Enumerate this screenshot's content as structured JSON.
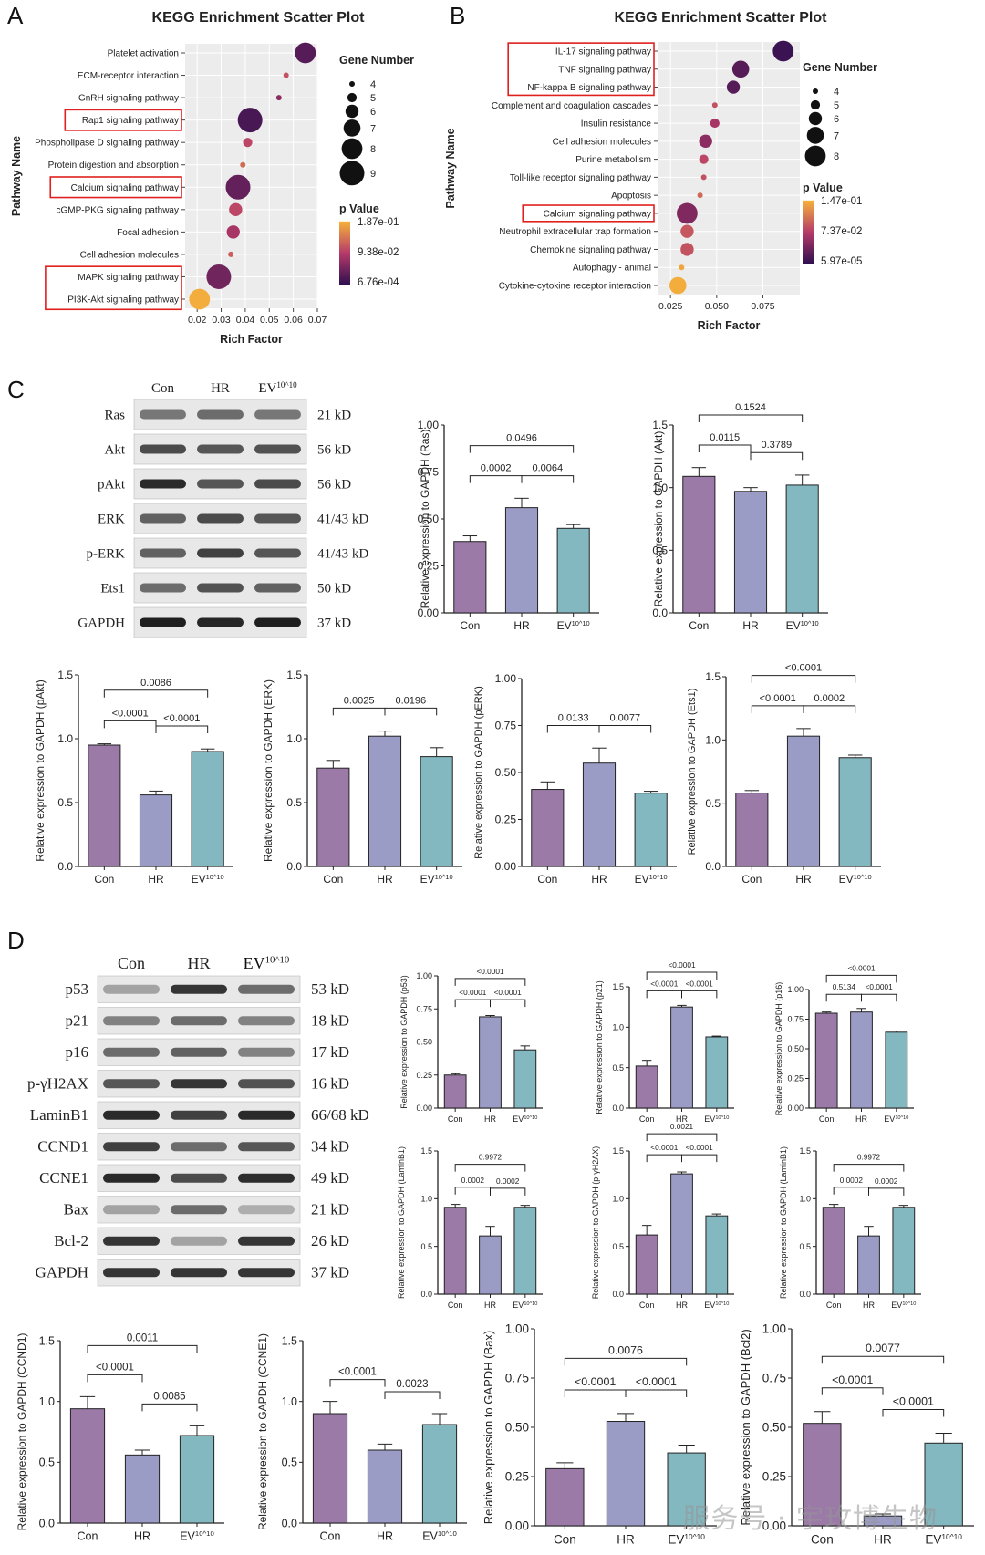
{
  "panel_labels": [
    "A",
    "B",
    "C",
    "D"
  ],
  "colors": {
    "con": "#9B7AA8",
    "hr": "#9B9CC6",
    "ev": "#84B8C0",
    "highlight": "#E0201E"
  },
  "kegg_common": {
    "title": "KEGG Enrichment Scatter Plot",
    "ylabel": "Pathway Name",
    "xlabel": "Rich Factor",
    "size_legend_title": "Gene Number",
    "color_legend_title": "p Value"
  },
  "chart_data": [
    {
      "id": "A",
      "type": "scatter",
      "title": "KEGG Enrichment Scatter Plot",
      "xlabel": "Rich Factor",
      "ylabel": "Pathway Name",
      "xlim": [
        0.015,
        0.07
      ],
      "xticks": [
        "0.02",
        "0.03",
        "0.04",
        "0.05",
        "0.06",
        "0.07"
      ],
      "xticks_num": [
        0.02,
        0.03,
        0.04,
        0.05,
        0.06,
        0.07
      ],
      "pathways": [
        "Platelet activation",
        "ECM-receptor interaction",
        "GnRH signaling pathway",
        "Rap1 signaling pathway",
        "Phospholipase D signaling pathway",
        "Protein digestion and absorption",
        "Calcium signaling pathway",
        "cGMP-PKG signaling pathway",
        "Focal adhesion",
        "Cell adhesion molecules",
        "MAPK signaling pathway",
        "PI3K-Akt signaling pathway"
      ],
      "highlighted": [
        3,
        6,
        10,
        11
      ],
      "rich_factor": [
        0.065,
        0.057,
        0.054,
        0.042,
        0.041,
        0.039,
        0.037,
        0.036,
        0.035,
        0.034,
        0.029,
        0.021
      ],
      "gene_number": [
        8,
        4,
        4,
        9,
        5,
        4,
        9,
        6,
        6,
        4,
        9,
        8
      ],
      "color_t": [
        0.15,
        0.6,
        0.35,
        0.1,
        0.55,
        0.7,
        0.2,
        0.55,
        0.45,
        0.65,
        0.25,
        0.98
      ],
      "size_legend": [
        "4",
        "5",
        "6",
        "7",
        "8",
        "9"
      ],
      "color_legend": [
        "1.87e-01",
        "9.38e-02",
        "6.76e-04"
      ]
    },
    {
      "id": "B",
      "type": "scatter",
      "title": "KEGG Enrichment Scatter Plot",
      "xlabel": "Rich Factor",
      "ylabel": "Pathway Name",
      "xlim": [
        0.018,
        0.095
      ],
      "xticks": [
        "0.025",
        "0.050",
        "0.075"
      ],
      "xticks_num": [
        0.025,
        0.05,
        0.075
      ],
      "pathways": [
        "IL-17 signaling pathway",
        "TNF signaling pathway",
        "NF-kappa B signaling pathway",
        "Complement and coagulation cascades",
        "Insulin resistance",
        "Cell adhesion molecules",
        "Purine metabolism",
        "Toll-like receptor signaling pathway",
        "Apoptosis",
        "Calcium signaling pathway",
        "Neutrophil extracellular trap formation",
        "Chemokine signaling pathway",
        "Autophagy - animal",
        "Cytokine-cytokine receptor interaction"
      ],
      "highlighted": [
        0,
        1,
        2,
        9
      ],
      "rich_factor": [
        0.086,
        0.063,
        0.059,
        0.049,
        0.049,
        0.044,
        0.043,
        0.043,
        0.041,
        0.034,
        0.034,
        0.034,
        0.031,
        0.029
      ],
      "gene_number": [
        8,
        7,
        6,
        4,
        5,
        6,
        5,
        4,
        4,
        8,
        6,
        6,
        4,
        7
      ],
      "color_t": [
        0.05,
        0.15,
        0.15,
        0.6,
        0.45,
        0.35,
        0.55,
        0.6,
        0.7,
        0.3,
        0.62,
        0.6,
        0.95,
        0.98
      ],
      "size_legend": [
        "4",
        "5",
        "6",
        "7",
        "8"
      ],
      "color_legend": [
        "1.47e-01",
        "7.37e-02",
        "5.97e-05"
      ]
    },
    {
      "id": "C-Ras",
      "type": "bar",
      "ylabel": "Relative expression to GAPDH (Ras)",
      "categories": [
        "Con",
        "HR",
        "EV10^10"
      ],
      "values": [
        0.38,
        0.56,
        0.45
      ],
      "errors": [
        0.03,
        0.05,
        0.02
      ],
      "ylim": [
        0,
        1.0
      ],
      "yticks": [
        "0.00",
        "0.25",
        "0.50",
        "0.75",
        "1.00"
      ],
      "brackets": [
        {
          "a": 0,
          "b": 1,
          "p": "0.0002"
        },
        {
          "a": 1,
          "b": 2,
          "p": "0.0064"
        },
        {
          "a": 0,
          "b": 2,
          "p": "0.0496"
        }
      ]
    },
    {
      "id": "C-Akt",
      "type": "bar",
      "ylabel": "Relative expression to GAPDH (Akt)",
      "categories": [
        "Con",
        "HR",
        "EV10^10"
      ],
      "values": [
        1.09,
        0.97,
        1.02
      ],
      "errors": [
        0.07,
        0.03,
        0.08
      ],
      "ylim": [
        0,
        1.5
      ],
      "yticks": [
        "0.0",
        "0.5",
        "1.0",
        "1.5"
      ],
      "brackets": [
        {
          "a": 0,
          "b": 1,
          "p": "0.0115"
        },
        {
          "a": 1,
          "b": 2,
          "p": "0.3789"
        },
        {
          "a": 0,
          "b": 2,
          "p": "0.1524"
        }
      ]
    },
    {
      "id": "C-pAkt",
      "type": "bar",
      "ylabel": "Relative expression to GAPDH (pAkt)",
      "categories": [
        "Con",
        "HR",
        "EV10^10"
      ],
      "values": [
        0.95,
        0.56,
        0.9
      ],
      "errors": [
        0.01,
        0.03,
        0.02
      ],
      "ylim": [
        0,
        1.5
      ],
      "yticks": [
        "0.0",
        "0.5",
        "1.0",
        "1.5"
      ],
      "brackets": [
        {
          "a": 0,
          "b": 1,
          "p": "<0.0001"
        },
        {
          "a": 1,
          "b": 2,
          "p": "<0.0001"
        },
        {
          "a": 0,
          "b": 2,
          "p": "0.0086"
        }
      ]
    },
    {
      "id": "C-ERK",
      "type": "bar",
      "ylabel": "Relative expression to GAPDH (ERK)",
      "categories": [
        "Con",
        "HR",
        "EV10^10"
      ],
      "values": [
        0.77,
        1.02,
        0.86
      ],
      "errors": [
        0.06,
        0.04,
        0.07
      ],
      "ylim": [
        0,
        1.5
      ],
      "yticks": [
        "0.0",
        "0.5",
        "1.0",
        "1.5"
      ],
      "brackets": [
        {
          "a": 0,
          "b": 1,
          "p": "0.0025"
        },
        {
          "a": 1,
          "b": 2,
          "p": "0.0196"
        }
      ]
    },
    {
      "id": "C-pERK",
      "type": "bar",
      "ylabel": "Relative expression to GAPDH (pERK)",
      "categories": [
        "Con",
        "HR",
        "EV10^10"
      ],
      "values": [
        0.41,
        0.55,
        0.39
      ],
      "errors": [
        0.04,
        0.08,
        0.01
      ],
      "ylim": [
        0,
        1.0
      ],
      "yticks": [
        "0.00",
        "0.25",
        "0.50",
        "0.75",
        "1.00"
      ],
      "brackets": [
        {
          "a": 0,
          "b": 1,
          "p": "0.0133"
        },
        {
          "a": 1,
          "b": 2,
          "p": "0.0077"
        }
      ]
    },
    {
      "id": "C-Ets1",
      "type": "bar",
      "ylabel": "Relative expression to GAPDH (Ets1)",
      "categories": [
        "Con",
        "HR",
        "EV10^10"
      ],
      "values": [
        0.58,
        1.03,
        0.86
      ],
      "errors": [
        0.02,
        0.06,
        0.02
      ],
      "ylim": [
        0,
        1.5
      ],
      "yticks": [
        "0.0",
        "0.5",
        "1.0",
        "1.5"
      ],
      "brackets": [
        {
          "a": 0,
          "b": 1,
          "p": "<0.0001"
        },
        {
          "a": 1,
          "b": 2,
          "p": "0.0002"
        },
        {
          "a": 0,
          "b": 2,
          "p": "<0.0001"
        }
      ]
    },
    {
      "id": "D-p53",
      "type": "bar",
      "ylabel": "Relative expression to GAPDH (p53)",
      "categories": [
        "Con",
        "HR",
        "EV10^10"
      ],
      "values": [
        0.25,
        0.69,
        0.44
      ],
      "errors": [
        0.01,
        0.01,
        0.03
      ],
      "ylim": [
        0,
        1.0
      ],
      "yticks": [
        "0.00",
        "0.25",
        "0.50",
        "0.75",
        "1.00"
      ],
      "brackets": [
        {
          "a": 0,
          "b": 1,
          "p": "<0.0001"
        },
        {
          "a": 1,
          "b": 2,
          "p": "<0.0001"
        },
        {
          "a": 0,
          "b": 2,
          "p": "<0.0001"
        }
      ]
    },
    {
      "id": "D-p21",
      "type": "bar",
      "ylabel": "Relative expression to GAPDH (p21)",
      "categories": [
        "Con",
        "HR",
        "EV10^10"
      ],
      "values": [
        0.52,
        1.25,
        0.88
      ],
      "errors": [
        0.07,
        0.02,
        0.01
      ],
      "ylim": [
        0,
        1.5
      ],
      "yticks": [
        "0.0",
        "0.5",
        "1.0",
        "1.5"
      ],
      "brackets": [
        {
          "a": 0,
          "b": 1,
          "p": "<0.0001"
        },
        {
          "a": 1,
          "b": 2,
          "p": "<0.0001"
        },
        {
          "a": 0,
          "b": 2,
          "p": "<0.0001"
        }
      ]
    },
    {
      "id": "D-p16",
      "type": "bar",
      "ylabel": "Relative expression to GAPDH (p16)",
      "categories": [
        "Con",
        "HR",
        "EV10^10"
      ],
      "values": [
        0.8,
        0.81,
        0.64
      ],
      "errors": [
        0.01,
        0.03,
        0.01
      ],
      "ylim": [
        0,
        1.0
      ],
      "yticks": [
        "0.00",
        "0.25",
        "0.50",
        "0.75",
        "1.00"
      ],
      "brackets": [
        {
          "a": 0,
          "b": 1,
          "p": "0.5134"
        },
        {
          "a": 1,
          "b": 2,
          "p": "<0.0001"
        },
        {
          "a": 0,
          "b": 2,
          "p": "<0.0001"
        }
      ]
    },
    {
      "id": "D-LaminB1",
      "type": "bar",
      "ylabel": "Relative expression to GAPDH (LaminB1)",
      "categories": [
        "Con",
        "HR",
        "EV10^10"
      ],
      "values": [
        0.91,
        0.61,
        0.91
      ],
      "errors": [
        0.03,
        0.1,
        0.02
      ],
      "ylim": [
        0,
        1.5
      ],
      "yticks": [
        "0.0",
        "0.5",
        "1.0",
        "1.5"
      ],
      "brackets": [
        {
          "a": 0,
          "b": 1,
          "p": "0.0002"
        },
        {
          "a": 1,
          "b": 2,
          "p": "0.0002"
        },
        {
          "a": 0,
          "b": 2,
          "p": "0.9972"
        }
      ]
    },
    {
      "id": "D-pyH2AX",
      "type": "bar",
      "ylabel": "Relative expression to GAPDH (p-γH2AX)",
      "categories": [
        "Con",
        "HR",
        "EV10^10"
      ],
      "values": [
        0.62,
        1.26,
        0.82
      ],
      "errors": [
        0.1,
        0.02,
        0.02
      ],
      "ylim": [
        0,
        1.5
      ],
      "yticks": [
        "0.0",
        "0.5",
        "1.0",
        "1.5"
      ],
      "brackets": [
        {
          "a": 0,
          "b": 1,
          "p": "<0.0001"
        },
        {
          "a": 1,
          "b": 2,
          "p": "<0.0001"
        },
        {
          "a": 0,
          "b": 2,
          "p": "0.0021"
        }
      ]
    },
    {
      "id": "D-LaminB1-2",
      "type": "bar",
      "ylabel": "Relative expression to GAPDH (LaminB1)",
      "categories": [
        "Con",
        "HR",
        "EV10^10"
      ],
      "values": [
        0.91,
        0.61,
        0.91
      ],
      "errors": [
        0.03,
        0.1,
        0.02
      ],
      "ylim": [
        0,
        1.5
      ],
      "yticks": [
        "0.0",
        "0.5",
        "1.0",
        "1.5"
      ],
      "brackets": [
        {
          "a": 0,
          "b": 1,
          "p": "0.0002"
        },
        {
          "a": 1,
          "b": 2,
          "p": "0.0002"
        },
        {
          "a": 0,
          "b": 2,
          "p": "0.9972"
        }
      ]
    },
    {
      "id": "D-CCND1",
      "type": "bar",
      "ylabel": "Relative expression to GAPDH (CCND1)",
      "categories": [
        "Con",
        "HR",
        "EV10^10"
      ],
      "values": [
        0.94,
        0.56,
        0.72
      ],
      "errors": [
        0.1,
        0.04,
        0.08
      ],
      "ylim": [
        0,
        1.5
      ],
      "yticks": [
        "0.0",
        "0.5",
        "1.0",
        "1.5"
      ],
      "brackets": [
        {
          "a": 0,
          "b": 1,
          "p": "<0.0001"
        },
        {
          "a": 1,
          "b": 2,
          "p": "0.0085"
        },
        {
          "a": 0,
          "b": 2,
          "p": "0.0011"
        }
      ]
    },
    {
      "id": "D-CCNE1",
      "type": "bar",
      "ylabel": "Relative expression to GAPDH (CCNE1)",
      "categories": [
        "Con",
        "HR",
        "EV10^10"
      ],
      "values": [
        0.9,
        0.6,
        0.81
      ],
      "errors": [
        0.1,
        0.05,
        0.09
      ],
      "ylim": [
        0,
        1.5
      ],
      "yticks": [
        "0.0",
        "0.5",
        "1.0",
        "1.5"
      ],
      "brackets": [
        {
          "a": 0,
          "b": 1,
          "p": "<0.0001"
        },
        {
          "a": 1,
          "b": 2,
          "p": "0.0023"
        }
      ]
    },
    {
      "id": "D-Bax",
      "type": "bar",
      "ylabel": "Relative expression to GAPDH (Bax)",
      "categories": [
        "Con",
        "HR",
        "EV10^10"
      ],
      "values": [
        0.29,
        0.53,
        0.37
      ],
      "errors": [
        0.03,
        0.04,
        0.04
      ],
      "ylim": [
        0,
        1.0
      ],
      "yticks": [
        "0.00",
        "0.25",
        "0.50",
        "0.75",
        "1.00"
      ],
      "brackets": [
        {
          "a": 0,
          "b": 1,
          "p": "<0.0001"
        },
        {
          "a": 1,
          "b": 2,
          "p": "<0.0001"
        },
        {
          "a": 0,
          "b": 2,
          "p": "0.0076"
        }
      ]
    },
    {
      "id": "D-Bcl2",
      "type": "bar",
      "ylabel": "Relative expression to GAPDH (Bcl2)",
      "categories": [
        "Con",
        "HR",
        "EV10^10"
      ],
      "values": [
        0.52,
        0.05,
        0.42
      ],
      "errors": [
        0.06,
        0.01,
        0.05
      ],
      "ylim": [
        0,
        1.0
      ],
      "yticks": [
        "0.00",
        "0.25",
        "0.50",
        "0.75",
        "1.00"
      ],
      "brackets": [
        {
          "a": 0,
          "b": 1,
          "p": "<0.0001"
        },
        {
          "a": 1,
          "b": 2,
          "p": "<0.0001"
        },
        {
          "a": 0,
          "b": 2,
          "p": "0.0077"
        }
      ]
    }
  ],
  "blots": [
    {
      "id": "C",
      "lanes": [
        "Con",
        "HR",
        "EV10^10"
      ],
      "rows": [
        {
          "protein": "Ras",
          "kd": "21 kD",
          "intensity": [
            0.55,
            0.6,
            0.55
          ]
        },
        {
          "protein": "Akt",
          "kd": "56 kD",
          "intensity": [
            0.75,
            0.7,
            0.72
          ]
        },
        {
          "protein": "pAkt",
          "kd": "56 kD",
          "intensity": [
            0.9,
            0.7,
            0.75
          ]
        },
        {
          "protein": "ERK",
          "kd": "41/43 kD",
          "intensity": [
            0.65,
            0.75,
            0.7
          ]
        },
        {
          "protein": "p-ERK",
          "kd": "41/43 kD",
          "intensity": [
            0.65,
            0.8,
            0.7
          ]
        },
        {
          "protein": "Ets1",
          "kd": "50 kD",
          "intensity": [
            0.6,
            0.72,
            0.65
          ]
        },
        {
          "protein": "GAPDH",
          "kd": "37 kD",
          "intensity": [
            0.95,
            0.92,
            0.95
          ]
        }
      ]
    },
    {
      "id": "D",
      "lanes": [
        "Con",
        "HR",
        "EV10^10"
      ],
      "rows": [
        {
          "protein": "p53",
          "kd": "53 kD",
          "intensity": [
            0.35,
            0.85,
            0.6
          ]
        },
        {
          "protein": "p21",
          "kd": "18 kD",
          "intensity": [
            0.5,
            0.6,
            0.5
          ]
        },
        {
          "protein": "p16",
          "kd": "17 kD",
          "intensity": [
            0.6,
            0.65,
            0.5
          ]
        },
        {
          "protein": "p-γH2AX",
          "kd": "16 kD",
          "intensity": [
            0.7,
            0.85,
            0.72
          ]
        },
        {
          "protein": "LaminB1",
          "kd": "66/68 kD",
          "intensity": [
            0.9,
            0.8,
            0.9
          ]
        },
        {
          "protein": "CCND1",
          "kd": "34 kD",
          "intensity": [
            0.8,
            0.6,
            0.7
          ]
        },
        {
          "protein": "CCNE1",
          "kd": "49 kD",
          "intensity": [
            0.9,
            0.75,
            0.88
          ]
        },
        {
          "protein": "Bax",
          "kd": "21 kD",
          "intensity": [
            0.35,
            0.6,
            0.3
          ]
        },
        {
          "protein": "Bcl-2",
          "kd": "26 kD",
          "intensity": [
            0.85,
            0.35,
            0.85
          ]
        },
        {
          "protein": "GAPDH",
          "kd": "37 kD",
          "intensity": [
            0.85,
            0.85,
            0.85
          ]
        }
      ]
    }
  ],
  "watermark": "服务号 · 宇玫博生物"
}
